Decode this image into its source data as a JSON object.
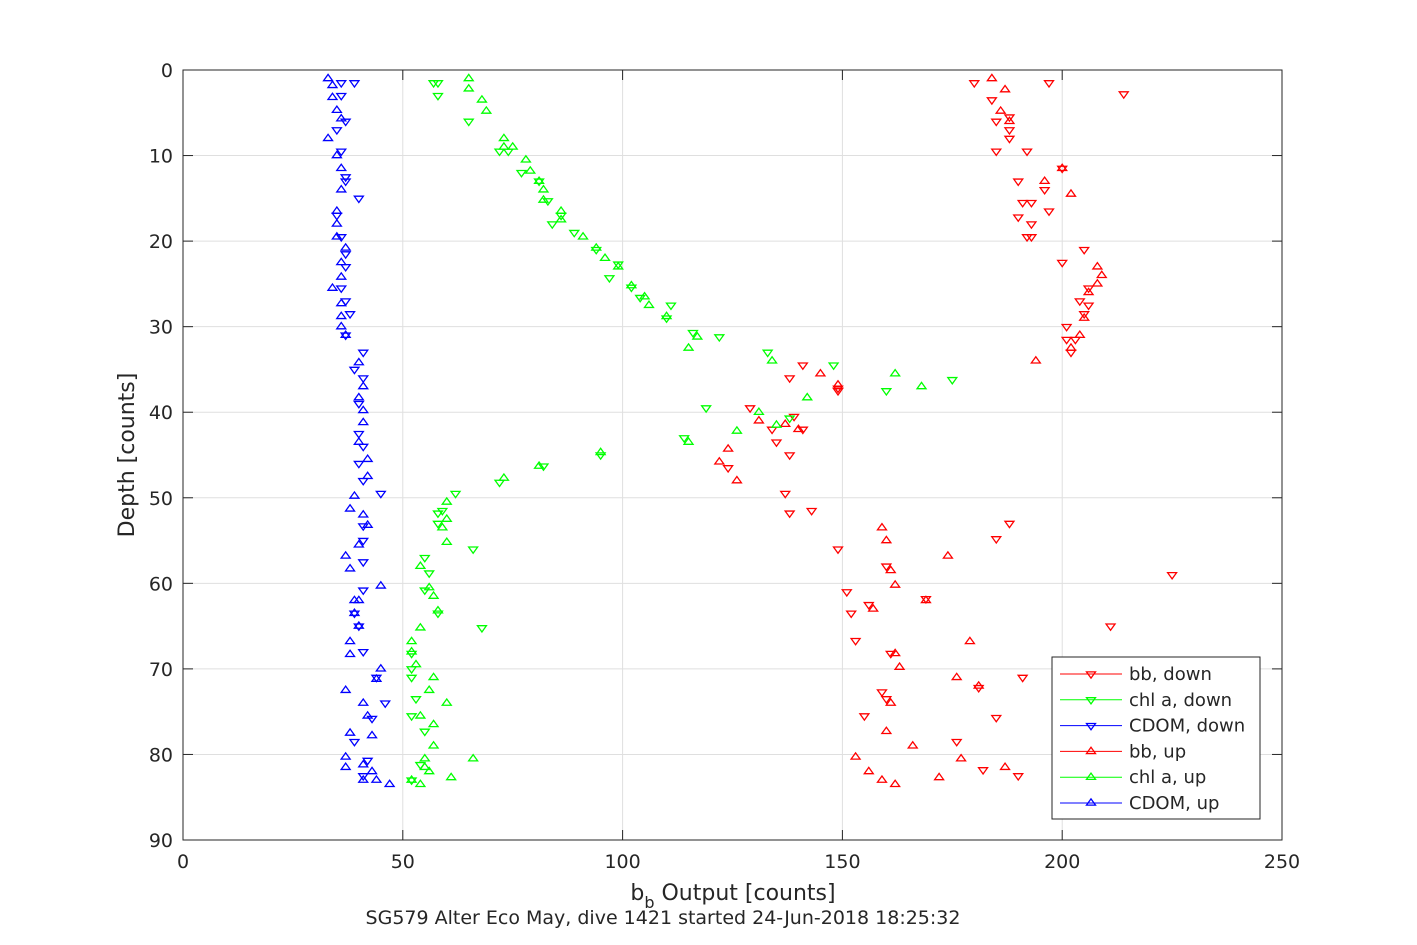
{
  "chart_data": {
    "type": "scatter",
    "title": "",
    "xlabel_main": "b",
    "xlabel_sub": "b",
    "xlabel_rest": " Output [counts]",
    "ylabel": "Depth [counts]",
    "caption": "SG579 Alter Eco May, dive 1421 started 24-Jun-2018 18:25:32",
    "xlim": [
      0,
      250
    ],
    "ylim": [
      0,
      90
    ],
    "y_reversed": true,
    "grid": true,
    "legend_position": "bottom-right",
    "x_ticks": [
      0,
      50,
      100,
      150,
      200,
      250
    ],
    "y_ticks": [
      0,
      10,
      20,
      30,
      40,
      50,
      60,
      70,
      80,
      90
    ],
    "series": [
      {
        "name": "bb, down",
        "color": "#ff0000",
        "marker": "triangle-down",
        "points": [
          [
            180,
            1.5
          ],
          [
            197,
            1.5
          ],
          [
            214,
            2.8
          ],
          [
            184,
            3.5
          ],
          [
            188,
            5.5
          ],
          [
            185,
            6
          ],
          [
            188,
            7
          ],
          [
            188,
            8
          ],
          [
            185,
            9.5
          ],
          [
            192,
            9.5
          ],
          [
            200,
            11.5
          ],
          [
            190,
            13
          ],
          [
            196,
            14
          ],
          [
            193,
            15.5
          ],
          [
            191,
            15.5
          ],
          [
            197,
            16.5
          ],
          [
            190,
            17.2
          ],
          [
            193,
            18
          ],
          [
            193,
            19.5
          ],
          [
            192,
            19.5
          ],
          [
            205,
            21
          ],
          [
            200,
            22.5
          ],
          [
            206,
            25.5
          ],
          [
            204,
            27
          ],
          [
            206,
            27.5
          ],
          [
            205,
            28.5
          ],
          [
            201,
            30
          ],
          [
            203,
            31.5
          ],
          [
            201,
            31.5
          ],
          [
            202,
            33
          ],
          [
            141,
            34.5
          ],
          [
            138,
            36
          ],
          [
            149,
            37.2
          ],
          [
            149,
            37.5
          ],
          [
            129,
            39.5
          ],
          [
            139,
            40.5
          ],
          [
            141,
            42
          ],
          [
            134,
            42
          ],
          [
            135,
            43.5
          ],
          [
            138,
            45
          ],
          [
            124,
            46.5
          ],
          [
            137,
            49.5
          ],
          [
            138,
            51.8
          ],
          [
            143,
            51.5
          ],
          [
            185,
            54.8
          ],
          [
            188,
            53
          ],
          [
            149,
            56
          ],
          [
            160,
            58
          ],
          [
            225,
            59
          ],
          [
            151,
            61
          ],
          [
            169,
            61.8
          ],
          [
            156,
            62.5
          ],
          [
            152,
            63.5
          ],
          [
            211,
            65
          ],
          [
            153,
            66.7
          ],
          [
            161,
            68.2
          ],
          [
            160,
            73.5
          ],
          [
            191,
            71
          ],
          [
            181,
            72.2
          ],
          [
            159,
            72.7
          ],
          [
            155,
            75.5
          ],
          [
            185,
            75.7
          ],
          [
            176,
            78.5
          ],
          [
            182,
            81.8
          ],
          [
            190,
            82.5
          ]
        ]
      },
      {
        "name": "chl a, down",
        "color": "#00ff00",
        "marker": "triangle-down",
        "points": [
          [
            57,
            1.5
          ],
          [
            58,
            1.5
          ],
          [
            58,
            3
          ],
          [
            65,
            6
          ],
          [
            72,
            9.5
          ],
          [
            74,
            9.5
          ],
          [
            77,
            12
          ],
          [
            81,
            13
          ],
          [
            83,
            15.3
          ],
          [
            86,
            17
          ],
          [
            84,
            18
          ],
          [
            89,
            19
          ],
          [
            94,
            21
          ],
          [
            99,
            22.7
          ],
          [
            97,
            24.3
          ],
          [
            102,
            25.4
          ],
          [
            104,
            26.6
          ],
          [
            111,
            27.5
          ],
          [
            110,
            29
          ],
          [
            116,
            30.7
          ],
          [
            122,
            31.2
          ],
          [
            133,
            33
          ],
          [
            148,
            34.5
          ],
          [
            175,
            36.2
          ],
          [
            160,
            37.5
          ],
          [
            119,
            39.5
          ],
          [
            138,
            40.7
          ],
          [
            114,
            43
          ],
          [
            95,
            45
          ],
          [
            82,
            46.3
          ],
          [
            72,
            48.2
          ],
          [
            62,
            49.5
          ],
          [
            59,
            51.5
          ],
          [
            58,
            51.8
          ],
          [
            58,
            53
          ],
          [
            66,
            56
          ],
          [
            55,
            57
          ],
          [
            56,
            58.8
          ],
          [
            55,
            60.8
          ],
          [
            58,
            63.5
          ],
          [
            68,
            65.2
          ],
          [
            52,
            68.2
          ],
          [
            52,
            70
          ],
          [
            52,
            71
          ],
          [
            53,
            73.5
          ],
          [
            52,
            75.5
          ],
          [
            55,
            77.3
          ],
          [
            54,
            81.2
          ],
          [
            52,
            83
          ]
        ]
      },
      {
        "name": "CDOM, down",
        "color": "#0000ff",
        "marker": "triangle-down",
        "points": [
          [
            36,
            1.5
          ],
          [
            39,
            1.5
          ],
          [
            36,
            3
          ],
          [
            37,
            6
          ],
          [
            35,
            7
          ],
          [
            36,
            9.5
          ],
          [
            37,
            12.5
          ],
          [
            37,
            13
          ],
          [
            40,
            15
          ],
          [
            35,
            17
          ],
          [
            36,
            19.5
          ],
          [
            37,
            21.5
          ],
          [
            37,
            23
          ],
          [
            36,
            25.5
          ],
          [
            37,
            27
          ],
          [
            38,
            28.5
          ],
          [
            37,
            31
          ],
          [
            41,
            33
          ],
          [
            39,
            35
          ],
          [
            41,
            36
          ],
          [
            40,
            39
          ],
          [
            40,
            42.5
          ],
          [
            41,
            44
          ],
          [
            40,
            46
          ],
          [
            41,
            48
          ],
          [
            45,
            49.5
          ],
          [
            41,
            53.3
          ],
          [
            41,
            55
          ],
          [
            41,
            57.5
          ],
          [
            41,
            60.8
          ],
          [
            39,
            63.5
          ],
          [
            40,
            65
          ],
          [
            41,
            68
          ],
          [
            44,
            71
          ],
          [
            46,
            74
          ],
          [
            43,
            75.8
          ],
          [
            39,
            78.5
          ],
          [
            42,
            80.7
          ],
          [
            41,
            82.5
          ]
        ]
      },
      {
        "name": "bb, up",
        "color": "#ff0000",
        "marker": "triangle-up",
        "points": [
          [
            184,
            1
          ],
          [
            187,
            2.3
          ],
          [
            186,
            4.8
          ],
          [
            188,
            6
          ],
          [
            200,
            11.5
          ],
          [
            196,
            13
          ],
          [
            202,
            14.5
          ],
          [
            208,
            23
          ],
          [
            209,
            24
          ],
          [
            208,
            25
          ],
          [
            206,
            26
          ],
          [
            205,
            29
          ],
          [
            204,
            31
          ],
          [
            194,
            34
          ],
          [
            202,
            32.5
          ],
          [
            145,
            35.5
          ],
          [
            149,
            36.8
          ],
          [
            137,
            41.4
          ],
          [
            140,
            42
          ],
          [
            131,
            41
          ],
          [
            124,
            44.3
          ],
          [
            122,
            45.8
          ],
          [
            126,
            48
          ],
          [
            159,
            53.5
          ],
          [
            160,
            55
          ],
          [
            174,
            56.8
          ],
          [
            161,
            58.5
          ],
          [
            162,
            60.2
          ],
          [
            169,
            62
          ],
          [
            157,
            63
          ],
          [
            179,
            66.8
          ],
          [
            163,
            69.8
          ],
          [
            162,
            68.2
          ],
          [
            176,
            71
          ],
          [
            181,
            72
          ],
          [
            161,
            74
          ],
          [
            160,
            77.3
          ],
          [
            166,
            79
          ],
          [
            177,
            80.5
          ],
          [
            153,
            80.3
          ],
          [
            187,
            81.5
          ],
          [
            172,
            82.7
          ],
          [
            156,
            82
          ],
          [
            159,
            83
          ],
          [
            162,
            83.5
          ]
        ]
      },
      {
        "name": "chl a, up",
        "color": "#00ff00",
        "marker": "triangle-up",
        "points": [
          [
            65,
            1
          ],
          [
            65,
            2.2
          ],
          [
            68,
            3.5
          ],
          [
            69,
            4.8
          ],
          [
            73,
            8
          ],
          [
            73,
            9
          ],
          [
            75,
            9
          ],
          [
            78,
            10.5
          ],
          [
            79,
            11.8
          ],
          [
            81,
            13
          ],
          [
            82,
            14
          ],
          [
            82,
            15.2
          ],
          [
            86,
            16.5
          ],
          [
            86,
            17.5
          ],
          [
            91,
            19.5
          ],
          [
            94,
            20.8
          ],
          [
            96,
            22
          ],
          [
            99,
            23
          ],
          [
            102,
            25.2
          ],
          [
            105,
            26.5
          ],
          [
            106,
            27.5
          ],
          [
            110,
            28.8
          ],
          [
            115,
            32.5
          ],
          [
            117,
            31.2
          ],
          [
            134,
            34
          ],
          [
            162,
            35.5
          ],
          [
            168,
            37
          ],
          [
            142,
            38.3
          ],
          [
            131,
            40
          ],
          [
            135,
            41.5
          ],
          [
            126,
            42.2
          ],
          [
            115,
            43.5
          ],
          [
            95,
            44.7
          ],
          [
            81,
            46.3
          ],
          [
            73,
            47.7
          ],
          [
            60,
            50.5
          ],
          [
            60,
            52.5
          ],
          [
            59,
            53.5
          ],
          [
            60,
            55.2
          ],
          [
            54,
            58
          ],
          [
            56,
            60.5
          ],
          [
            57,
            61.5
          ],
          [
            58,
            63.2
          ],
          [
            54,
            65.2
          ],
          [
            52,
            66.8
          ],
          [
            52,
            68
          ],
          [
            53,
            69.5
          ],
          [
            57,
            71
          ],
          [
            56,
            72.5
          ],
          [
            60,
            74
          ],
          [
            54,
            75.5
          ],
          [
            57,
            76.5
          ],
          [
            57,
            79
          ],
          [
            55,
            80.5
          ],
          [
            66,
            80.5
          ],
          [
            55,
            81.5
          ],
          [
            56,
            82
          ],
          [
            61,
            82.7
          ],
          [
            52,
            83
          ],
          [
            54,
            83.5
          ]
        ]
      },
      {
        "name": "CDOM, up",
        "color": "#0000ff",
        "marker": "triangle-up",
        "points": [
          [
            33,
            1
          ],
          [
            34,
            1.8
          ],
          [
            34,
            3.2
          ],
          [
            35,
            4.7
          ],
          [
            36,
            5.7
          ],
          [
            33,
            8
          ],
          [
            35,
            10
          ],
          [
            36,
            11.5
          ],
          [
            36,
            14
          ],
          [
            35,
            16.5
          ],
          [
            35,
            18
          ],
          [
            35,
            19.5
          ],
          [
            37,
            20.8
          ],
          [
            36,
            22.5
          ],
          [
            36,
            24.2
          ],
          [
            34,
            25.5
          ],
          [
            36,
            27.3
          ],
          [
            36,
            28.8
          ],
          [
            36,
            30
          ],
          [
            37,
            31
          ],
          [
            40,
            34.2
          ],
          [
            41,
            37
          ],
          [
            40,
            38.3
          ],
          [
            41,
            39.8
          ],
          [
            41,
            41.2
          ],
          [
            40,
            43.5
          ],
          [
            42,
            45.5
          ],
          [
            42,
            47.5
          ],
          [
            39,
            49.8
          ],
          [
            38,
            51.3
          ],
          [
            41,
            52
          ],
          [
            42,
            53.2
          ],
          [
            40,
            55.5
          ],
          [
            37,
            56.8
          ],
          [
            38,
            58.3
          ],
          [
            45,
            60.3
          ],
          [
            39,
            62
          ],
          [
            40,
            62
          ],
          [
            39,
            63.5
          ],
          [
            40,
            65
          ],
          [
            38,
            66.8
          ],
          [
            38,
            68.3
          ],
          [
            45,
            70
          ],
          [
            44,
            71.2
          ],
          [
            37,
            72.5
          ],
          [
            41,
            74
          ],
          [
            42,
            75.5
          ],
          [
            38,
            77.5
          ],
          [
            43,
            77.8
          ],
          [
            37,
            80.3
          ],
          [
            41,
            81.2
          ],
          [
            37,
            81.5
          ],
          [
            43,
            82
          ],
          [
            41,
            83
          ],
          [
            44,
            83
          ],
          [
            47,
            83.5
          ]
        ]
      }
    ]
  }
}
